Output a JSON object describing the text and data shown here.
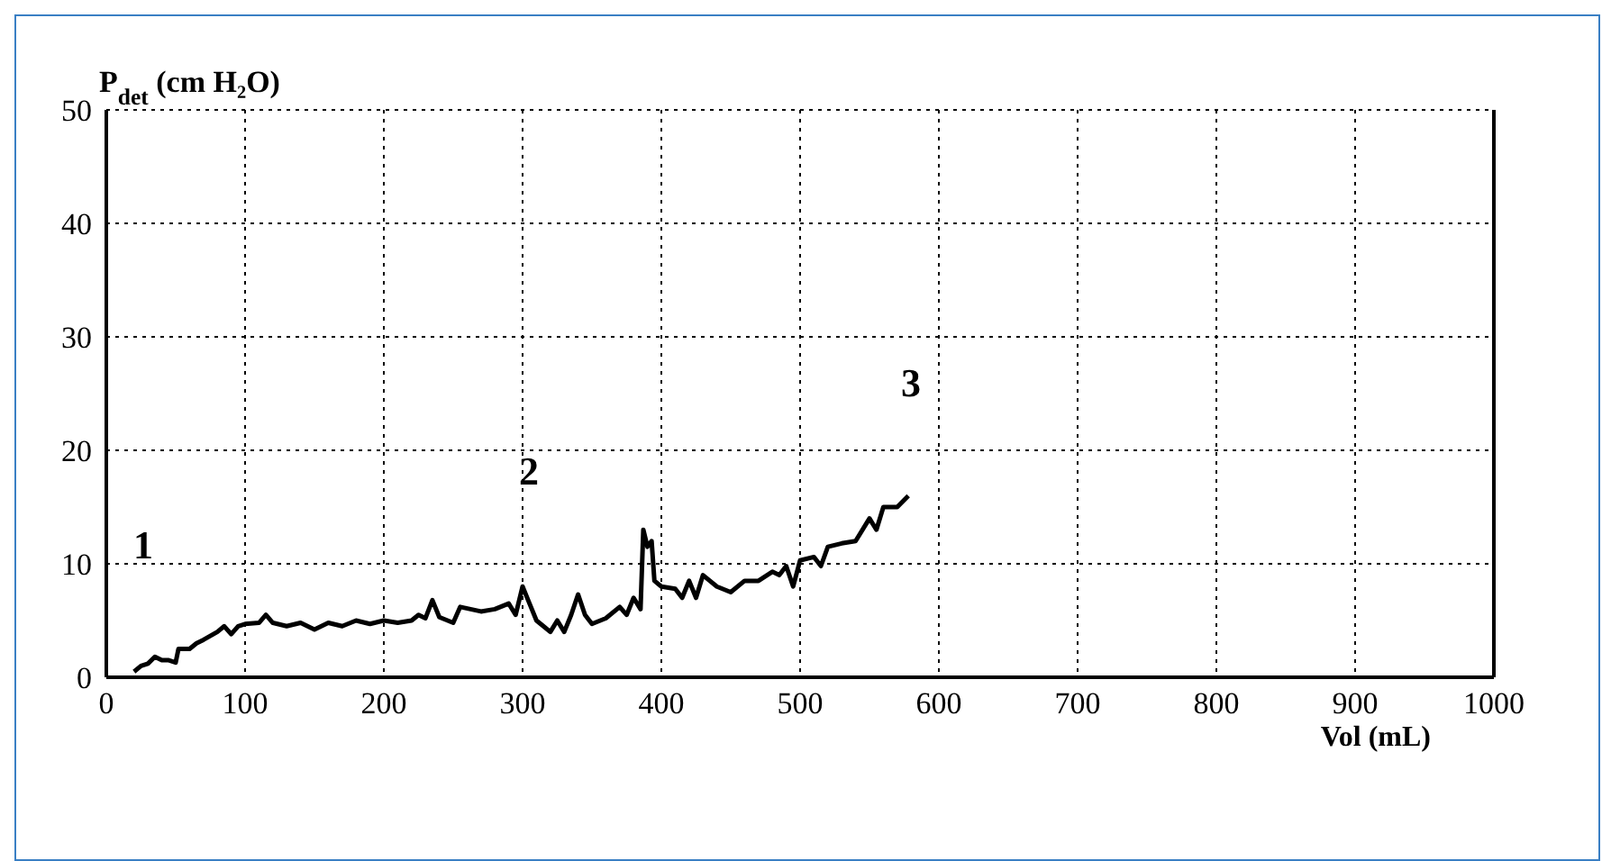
{
  "chart_data": {
    "type": "line",
    "ylabel": "P$_{det}$ (cm H₂O)",
    "xlabel": "Vol (mL)",
    "x": [
      20,
      25,
      30,
      35,
      40,
      45,
      50,
      52,
      60,
      65,
      70,
      80,
      85,
      90,
      95,
      100,
      110,
      115,
      120,
      130,
      140,
      150,
      160,
      170,
      180,
      190,
      200,
      210,
      220,
      225,
      230,
      235,
      240,
      250,
      255,
      270,
      280,
      290,
      295,
      300,
      305,
      310,
      315,
      320,
      325,
      330,
      335,
      340,
      345,
      350,
      360,
      370,
      375,
      380,
      385,
      387,
      390,
      393,
      395,
      400,
      410,
      415,
      420,
      425,
      430,
      440,
      450,
      460,
      470,
      480,
      485,
      490,
      495,
      500,
      510,
      515,
      520,
      530,
      540,
      550,
      555,
      560,
      570,
      578
    ],
    "series": [
      {
        "color": "#000000",
        "values": [
          0.5,
          1,
          1.2,
          1.8,
          1.5,
          1.5,
          1.3,
          2.5,
          2.5,
          3,
          3.3,
          4,
          4.5,
          3.8,
          4.5,
          4.7,
          4.8,
          5.5,
          4.8,
          4.5,
          4.8,
          4.2,
          4.8,
          4.5,
          5,
          4.7,
          5,
          4.8,
          5,
          5.5,
          5.2,
          6.8,
          5.3,
          4.8,
          6.2,
          5.8,
          6,
          6.5,
          5.5,
          8,
          6.5,
          5,
          4.5,
          4,
          5,
          4,
          5.5,
          7.3,
          5.5,
          4.7,
          5.2,
          6.2,
          5.5,
          7,
          6,
          13,
          11.5,
          12,
          8.5,
          8,
          7.8,
          7,
          8.5,
          7,
          9,
          8,
          7.5,
          8.5,
          8.5,
          9.3,
          9,
          9.8,
          8,
          10.3,
          10.6,
          9.8,
          11.5,
          11.8,
          12,
          14,
          13,
          15,
          15,
          16
        ]
      }
    ],
    "xlim": [
      0,
      1000
    ],
    "xticks": [
      0,
      100,
      200,
      300,
      400,
      500,
      600,
      700,
      800,
      900,
      1000
    ],
    "ylim": [
      0,
      50
    ],
    "yticks": [
      0,
      10,
      20,
      30,
      40,
      50
    ],
    "grid": true,
    "marker": "none",
    "line_style": "solid",
    "annotations": [
      "1",
      "2",
      "3"
    ]
  }
}
